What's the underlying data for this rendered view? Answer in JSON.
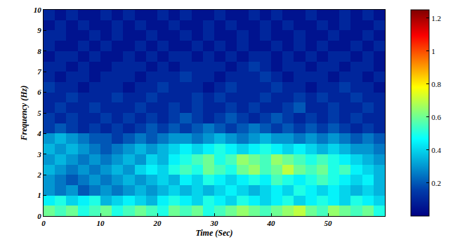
{
  "chart_data": {
    "type": "heatmap",
    "x_label": "Time (Sec)",
    "y_label": "Frequency (Hz)",
    "x": [
      1,
      3,
      5,
      7,
      9,
      11,
      13,
      15,
      17,
      19,
      21,
      23,
      25,
      27,
      29,
      31,
      33,
      35,
      37,
      39,
      41,
      43,
      45,
      47,
      49,
      51,
      53,
      55,
      57,
      59
    ],
    "y": [
      0.25,
      0.75,
      1.25,
      1.75,
      2.25,
      2.75,
      3.25,
      3.75,
      4.25,
      4.75,
      5.25,
      5.75,
      6.25,
      6.75,
      7.25,
      7.75,
      8.25,
      8.75,
      9.25,
      9.75
    ],
    "z": [
      [
        0.6,
        0.55,
        0.6,
        0.5,
        0.55,
        0.6,
        0.5,
        0.55,
        0.6,
        0.55,
        0.5,
        0.6,
        0.55,
        0.6,
        0.5,
        0.55,
        0.6,
        0.65,
        0.6,
        0.55,
        0.6,
        0.65,
        0.7,
        0.6,
        0.55,
        0.65,
        0.6,
        0.55,
        0.6,
        0.5
      ],
      [
        0.45,
        0.5,
        0.4,
        0.45,
        0.5,
        0.35,
        0.4,
        0.45,
        0.4,
        0.35,
        0.45,
        0.5,
        0.45,
        0.4,
        0.5,
        0.45,
        0.4,
        0.5,
        0.45,
        0.4,
        0.45,
        0.5,
        0.4,
        0.45,
        0.5,
        0.45,
        0.4,
        0.5,
        0.45,
        0.4
      ],
      [
        0.3,
        0.25,
        0.3,
        0.2,
        0.25,
        0.3,
        0.25,
        0.3,
        0.35,
        0.3,
        0.35,
        0.4,
        0.35,
        0.4,
        0.35,
        0.4,
        0.45,
        0.4,
        0.35,
        0.4,
        0.45,
        0.4,
        0.5,
        0.45,
        0.4,
        0.45,
        0.4,
        0.35,
        0.4,
        0.35
      ],
      [
        0.3,
        0.25,
        0.2,
        0.25,
        0.3,
        0.25,
        0.3,
        0.35,
        0.3,
        0.35,
        0.4,
        0.35,
        0.45,
        0.4,
        0.5,
        0.45,
        0.4,
        0.45,
        0.5,
        0.45,
        0.55,
        0.5,
        0.45,
        0.5,
        0.55,
        0.5,
        0.45,
        0.4,
        0.45,
        0.35
      ],
      [
        0.35,
        0.3,
        0.25,
        0.3,
        0.25,
        0.3,
        0.35,
        0.3,
        0.4,
        0.45,
        0.4,
        0.5,
        0.55,
        0.5,
        0.6,
        0.55,
        0.5,
        0.6,
        0.65,
        0.55,
        0.6,
        0.7,
        0.6,
        0.55,
        0.6,
        0.5,
        0.55,
        0.45,
        0.4,
        0.35
      ],
      [
        0.3,
        0.35,
        0.3,
        0.25,
        0.3,
        0.25,
        0.3,
        0.35,
        0.3,
        0.4,
        0.35,
        0.45,
        0.5,
        0.55,
        0.6,
        0.5,
        0.55,
        0.65,
        0.6,
        0.55,
        0.65,
        0.6,
        0.55,
        0.5,
        0.55,
        0.5,
        0.45,
        0.4,
        0.35,
        0.3
      ],
      [
        0.35,
        0.3,
        0.35,
        0.3,
        0.25,
        0.2,
        0.25,
        0.3,
        0.35,
        0.3,
        0.35,
        0.4,
        0.45,
        0.4,
        0.45,
        0.5,
        0.45,
        0.4,
        0.45,
        0.5,
        0.45,
        0.4,
        0.45,
        0.4,
        0.35,
        0.4,
        0.35,
        0.3,
        0.3,
        0.25
      ],
      [
        0.3,
        0.35,
        0.3,
        0.25,
        0.2,
        0.2,
        0.15,
        0.2,
        0.25,
        0.2,
        0.25,
        0.3,
        0.3,
        0.25,
        0.3,
        0.35,
        0.3,
        0.25,
        0.3,
        0.35,
        0.3,
        0.3,
        0.25,
        0.3,
        0.25,
        0.3,
        0.25,
        0.2,
        0.25,
        0.2
      ],
      [
        0.15,
        0.2,
        0.15,
        0.1,
        0.15,
        0.1,
        0.15,
        0.1,
        0.15,
        0.2,
        0.15,
        0.2,
        0.15,
        0.2,
        0.25,
        0.2,
        0.15,
        0.2,
        0.25,
        0.2,
        0.15,
        0.2,
        0.15,
        0.2,
        0.15,
        0.2,
        0.15,
        0.1,
        0.15,
        0.1
      ],
      [
        0.15,
        0.1,
        0.15,
        0.1,
        0.1,
        0.15,
        0.1,
        0.15,
        0.1,
        0.15,
        0.1,
        0.15,
        0.2,
        0.15,
        0.1,
        0.15,
        0.2,
        0.15,
        0.1,
        0.15,
        0.2,
        0.15,
        0.1,
        0.15,
        0.1,
        0.15,
        0.1,
        0.15,
        0.1,
        0.1
      ],
      [
        0.1,
        0.15,
        0.1,
        0.1,
        0.15,
        0.1,
        0.1,
        0.1,
        0.15,
        0.1,
        0.1,
        0.15,
        0.1,
        0.15,
        0.1,
        0.1,
        0.15,
        0.1,
        0.15,
        0.1,
        0.1,
        0.15,
        0.2,
        0.1,
        0.1,
        0.15,
        0.1,
        0.1,
        0.15,
        0.1
      ],
      [
        0.1,
        0.1,
        0.15,
        0.1,
        0.1,
        0.1,
        0.15,
        0.1,
        0.1,
        0.15,
        0.1,
        0.1,
        0.1,
        0.15,
        0.1,
        0.15,
        0.1,
        0.1,
        0.1,
        0.15,
        0.1,
        0.1,
        0.15,
        0.1,
        0.15,
        0.1,
        0.1,
        0.15,
        0.1,
        0.1
      ],
      [
        0.15,
        0.1,
        0.1,
        0.05,
        0.1,
        0.1,
        0.1,
        0.05,
        0.1,
        0.1,
        0.15,
        0.1,
        0.1,
        0.1,
        0.05,
        0.1,
        0.15,
        0.1,
        0.1,
        0.1,
        0.15,
        0.1,
        0.1,
        0.05,
        0.1,
        0.1,
        0.15,
        0.1,
        0.1,
        0.05
      ],
      [
        0.1,
        0.05,
        0.1,
        0.1,
        0.05,
        0.1,
        0.1,
        0.1,
        0.05,
        0.1,
        0.1,
        0.1,
        0.15,
        0.1,
        0.1,
        0.05,
        0.1,
        0.1,
        0.1,
        0.15,
        0.1,
        0.05,
        0.1,
        0.1,
        0.1,
        0.05,
        0.1,
        0.1,
        0.05,
        0.1
      ],
      [
        0.1,
        0.1,
        0.05,
        0.1,
        0.05,
        0.05,
        0.1,
        0.1,
        0.1,
        0.05,
        0.1,
        0.05,
        0.1,
        0.1,
        0.1,
        0.1,
        0.05,
        0.1,
        0.15,
        0.1,
        0.05,
        0.1,
        0.1,
        0.05,
        0.1,
        0.1,
        0.05,
        0.1,
        0.1,
        0.05
      ],
      [
        0.05,
        0.1,
        0.1,
        0.05,
        0.1,
        0.05,
        0.05,
        0.1,
        0.05,
        0.1,
        0.05,
        0.1,
        0.1,
        0.05,
        0.1,
        0.05,
        0.1,
        0.05,
        0.1,
        0.1,
        0.05,
        0.1,
        0.05,
        0.1,
        0.05,
        0.1,
        0.1,
        0.05,
        0.1,
        0.05
      ],
      [
        0.1,
        0.05,
        0.05,
        0.1,
        0.05,
        0.1,
        0.05,
        0.05,
        0.1,
        0.05,
        0.1,
        0.05,
        0.05,
        0.1,
        0.05,
        0.1,
        0.05,
        0.1,
        0.05,
        0.05,
        0.1,
        0.05,
        0.1,
        0.05,
        0.1,
        0.05,
        0.05,
        0.1,
        0.05,
        0.1
      ],
      [
        0.1,
        0.1,
        0.05,
        0.05,
        0.1,
        0.05,
        0.1,
        0.05,
        0.05,
        0.1,
        0.05,
        0.05,
        0.1,
        0.05,
        0.1,
        0.05,
        0.05,
        0.1,
        0.05,
        0.1,
        0.05,
        0.05,
        0.1,
        0.05,
        0.05,
        0.1,
        0.05,
        0.05,
        0.1,
        0.05
      ],
      [
        0.05,
        0.1,
        0.05,
        0.1,
        0.05,
        0.05,
        0.1,
        0.05,
        0.1,
        0.05,
        0.05,
        0.1,
        0.05,
        0.05,
        0.1,
        0.05,
        0.1,
        0.05,
        0.05,
        0.1,
        0.05,
        0.1,
        0.05,
        0.05,
        0.1,
        0.05,
        0.1,
        0.05,
        0.05,
        0.1
      ],
      [
        0.1,
        0.05,
        0.1,
        0.05,
        0.05,
        0.1,
        0.05,
        0.1,
        0.05,
        0.05,
        0.1,
        0.05,
        0.1,
        0.05,
        0.05,
        0.1,
        0.05,
        0.05,
        0.1,
        0.05,
        0.1,
        0.05,
        0.05,
        0.1,
        0.05,
        0.05,
        0.1,
        0.05,
        0.1,
        0.05
      ]
    ],
    "xlim": [
      0,
      60
    ],
    "ylim": [
      0,
      10
    ],
    "xticks": [
      0,
      10,
      20,
      30,
      40,
      50
    ],
    "yticks": [
      0,
      1,
      2,
      3,
      4,
      5,
      6,
      7,
      8,
      9,
      10
    ],
    "zlim": [
      0,
      1.25
    ],
    "zticks": [
      0.2,
      0.4,
      0.6,
      0.8,
      1,
      1.2
    ]
  }
}
